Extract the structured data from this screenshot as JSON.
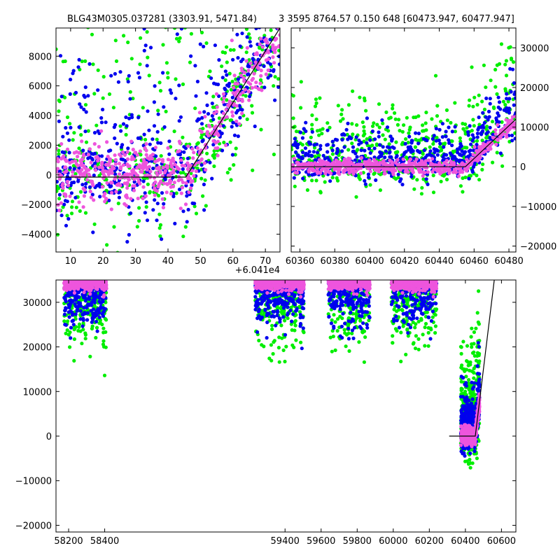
{
  "title_left": "BLG43M0305.037281 (3303.91, 5471.84)",
  "title_right": "3 3595 8764.57 0.150 648 [60473.947, 60477.947]",
  "series_colors": {
    "green": "#00ee00",
    "blue": "#0000ee",
    "magenta": "#ee55dd"
  },
  "chart_data": [
    {
      "panel": "top-left",
      "type": "scatter",
      "xlim": [
        5.5,
        74.5
      ],
      "ylim": [
        -5200,
        9900
      ],
      "x_offset_label": "+6.041e4",
      "xticks": [
        10,
        20,
        30,
        40,
        50,
        60,
        70
      ],
      "yticks": [
        -4000,
        -2000,
        0,
        2000,
        4000,
        6000,
        8000
      ],
      "yaxis_side": "left",
      "model_line": [
        [
          5.5,
          -150
        ],
        [
          45.5,
          -150
        ],
        [
          74.5,
          9900
        ]
      ]
    },
    {
      "panel": "top-right",
      "type": "scatter",
      "xlim": [
        60355,
        60484
      ],
      "ylim": [
        -21500,
        35000
      ],
      "xticks": [
        60360,
        60380,
        60400,
        60420,
        60440,
        60460,
        60480
      ],
      "yticks": [
        -20000,
        -10000,
        0,
        10000,
        20000,
        30000
      ],
      "yaxis_side": "right",
      "model_line": [
        [
          60355,
          0
        ],
        [
          60455,
          0
        ],
        [
          60484,
          12000
        ]
      ]
    },
    {
      "panel": "bottom",
      "type": "scatter",
      "xlim": [
        58130,
        60680
      ],
      "ylim": [
        -21500,
        35000
      ],
      "xticks": [
        58200,
        58400,
        59400,
        59600,
        59800,
        60000,
        60200,
        60400,
        60600
      ],
      "yticks": [
        -20000,
        -10000,
        0,
        10000,
        20000,
        30000
      ],
      "yaxis_side": "left",
      "seasons": [
        [
          58175,
          58410
        ],
        [
          59235,
          59505
        ],
        [
          59640,
          59870
        ],
        [
          59990,
          60240
        ],
        [
          60375,
          60478
        ]
      ],
      "model_line": [
        [
          60310,
          0
        ],
        [
          60455,
          0
        ],
        [
          60560,
          35000
        ]
      ]
    }
  ]
}
